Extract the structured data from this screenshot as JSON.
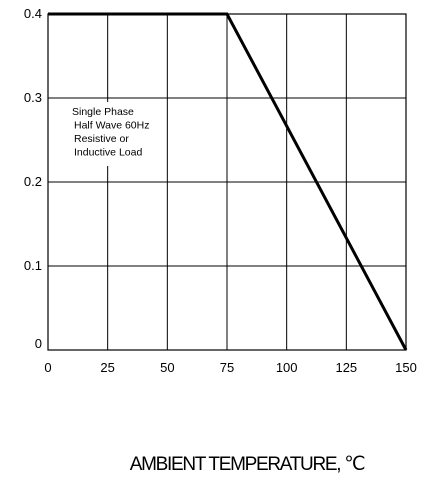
{
  "chart_data": {
    "type": "line",
    "title": "",
    "xlabel": "AMBIENT TEMPERATURE, ℃",
    "ylabel": "",
    "xlim": [
      0,
      150
    ],
    "ylim": [
      0,
      0.4
    ],
    "x_ticks": [
      0,
      25,
      50,
      75,
      100,
      125,
      150
    ],
    "y_ticks": [
      0,
      0.1,
      0.2,
      0.3,
      0.4
    ],
    "x_tick_labels": [
      "0",
      "25",
      "50",
      "75",
      "100",
      "125",
      "150"
    ],
    "y_tick_labels": [
      "0",
      "0.1",
      "0.2",
      "0.3",
      "0.4"
    ],
    "grid": true,
    "series": [
      {
        "x": [
          0,
          75,
          150
        ],
        "y": [
          0.4,
          0.4,
          0
        ]
      }
    ],
    "annotation": [
      "Single Phase",
      "Half Wave 60Hz",
      "Resistive or",
      "Inductive Load"
    ]
  }
}
